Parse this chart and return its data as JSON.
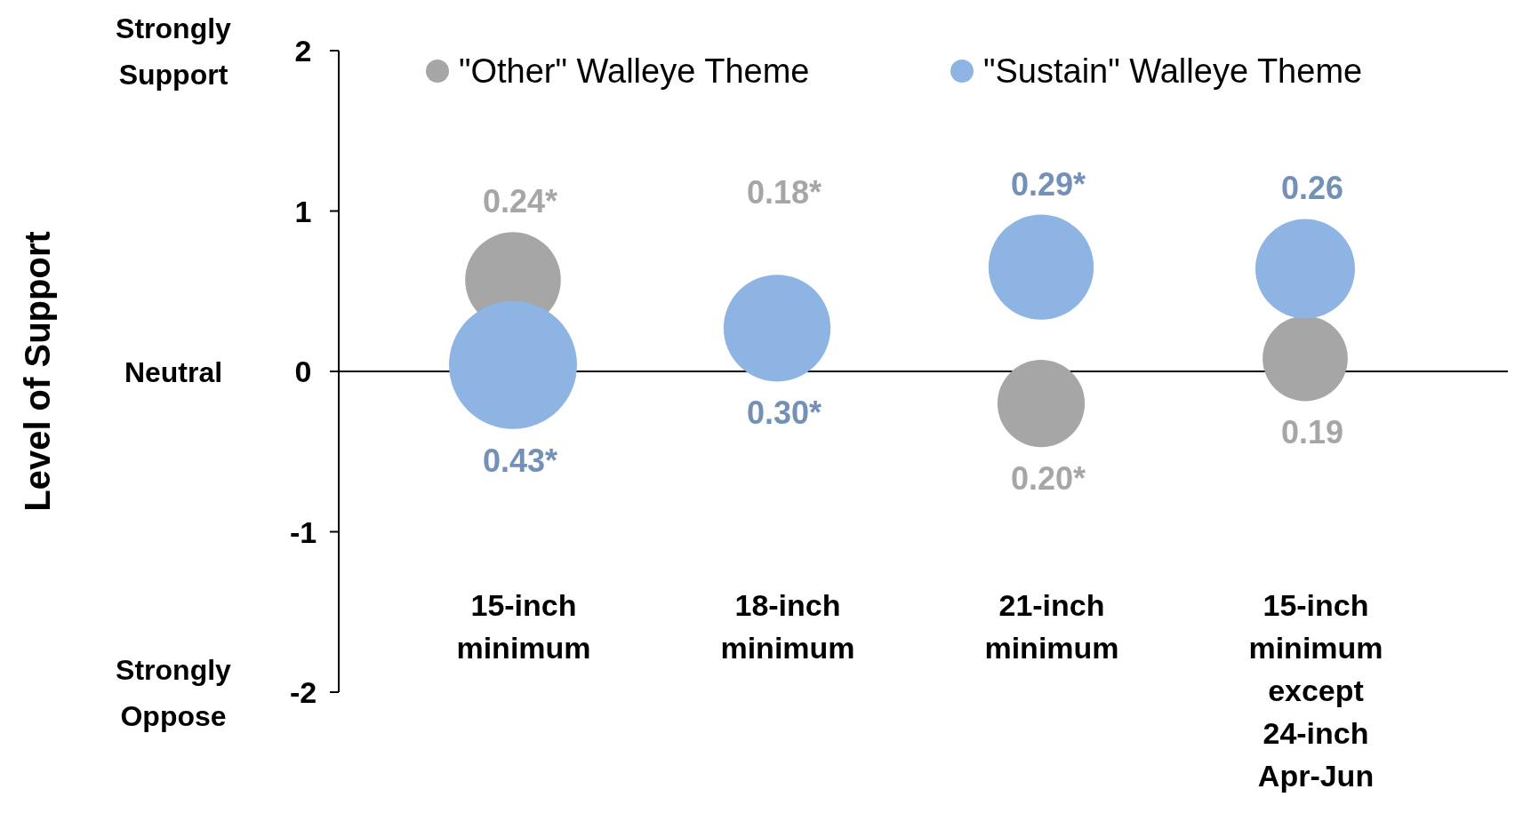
{
  "chart_data": {
    "type": "bubble",
    "categories": [
      "15-inch minimum",
      "18-inch minimum",
      "21-inch minimum",
      "15-inch minimum except 24-inch Apr-Jun"
    ],
    "ylim": [
      -2,
      2
    ],
    "yticks": [
      -2,
      -1,
      0,
      1,
      2
    ],
    "annotations": [
      "Level of Support",
      "Strongly Support",
      "Neutral",
      "Strongly Oppose"
    ],
    "legend": "top",
    "series": [
      {
        "name": "\"Other\" Walleye Theme",
        "color": "#a6a6a6",
        "values": [
          0.57,
          null,
          -0.2,
          0.08
        ],
        "sizes": [
          0.24,
          null,
          0.2,
          0.19
        ],
        "value_labels": [
          "0.24*",
          "0.18*",
          "0.20*",
          "0.19"
        ]
      },
      {
        "name": "\"Sustain\" Walleye Theme",
        "color": "#8eb4e3",
        "values": [
          0.04,
          0.27,
          0.65,
          0.64
        ],
        "sizes": [
          0.43,
          0.3,
          0.29,
          0.26
        ],
        "value_labels": [
          "0.43*",
          "0.30*",
          "0.29*",
          "0.26"
        ]
      }
    ]
  }
}
